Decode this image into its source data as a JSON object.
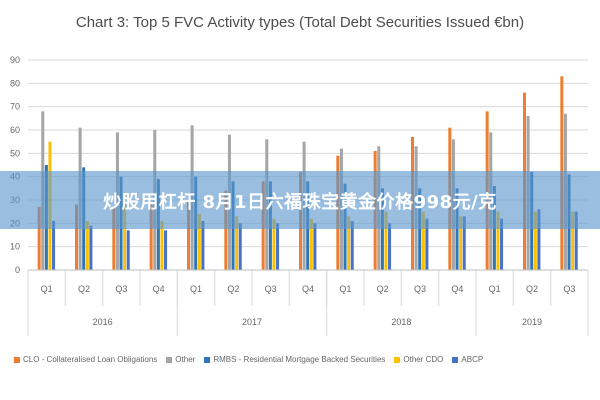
{
  "banner": {
    "text": "炒股用杠杆 8月1日六福珠宝黄金价格998元/克"
  },
  "chart_data": {
    "type": "bar",
    "title": "Chart 3: Top 5 FVC Activity types (Total Debt Securities Issued €bn)",
    "xlabel": "",
    "ylabel": "",
    "ylim": [
      0,
      90
    ],
    "yticks": [
      0,
      10,
      20,
      30,
      40,
      50,
      60,
      70,
      80,
      90
    ],
    "grid": true,
    "legend_position": "bottom",
    "categories": [
      "Q1",
      "Q2",
      "Q3",
      "Q4",
      "Q1",
      "Q2",
      "Q3",
      "Q4",
      "Q1",
      "Q2",
      "Q3",
      "Q4",
      "Q1",
      "Q2",
      "Q3"
    ],
    "groups": [
      {
        "label": "2016",
        "count": 4
      },
      {
        "label": "2017",
        "count": 4
      },
      {
        "label": "2018",
        "count": 4
      },
      {
        "label": "2019",
        "count": 3
      }
    ],
    "series": [
      {
        "name": "CLO - Collateralised Loan Obligations",
        "color": "#ed7d31",
        "values": [
          27,
          28,
          27,
          29,
          30,
          34,
          38,
          42,
          49,
          51,
          57,
          61,
          68,
          76,
          83
        ]
      },
      {
        "name": "Other",
        "color": "#a5a5a5",
        "values": [
          68,
          61,
          59,
          60,
          62,
          58,
          56,
          55,
          52,
          53,
          53,
          56,
          59,
          66,
          67
        ]
      },
      {
        "name": "RMBS - Residential Mortgage Backed Securities",
        "color": "#2e75b6",
        "values": [
          45,
          44,
          40,
          39,
          40,
          38,
          38,
          38,
          37,
          35,
          35,
          35,
          36,
          42,
          41
        ]
      },
      {
        "name": "Other CDO",
        "color": "#ffc000",
        "values": [
          55,
          21,
          28,
          21,
          24,
          23,
          22,
          22,
          23,
          25,
          25,
          23,
          25,
          25,
          25
        ]
      },
      {
        "name": "ABCP",
        "color": "#4472c4",
        "values": [
          21,
          19,
          17,
          17,
          21,
          20,
          20,
          20,
          21,
          20,
          22,
          23,
          22,
          26,
          25
        ]
      }
    ]
  }
}
